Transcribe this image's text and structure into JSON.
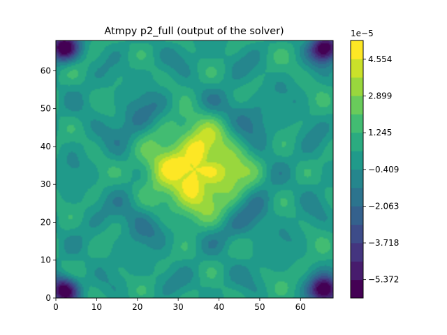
{
  "chart_data": {
    "type": "heatmap",
    "title": "Atmpy p2_full (output of the solver)",
    "xlabel": "",
    "ylabel": "",
    "xlim": [
      0,
      68
    ],
    "ylim": [
      0,
      68
    ],
    "x_ticks": [
      0,
      10,
      20,
      30,
      40,
      50,
      60
    ],
    "y_ticks": [
      0,
      10,
      20,
      30,
      40,
      50,
      60
    ],
    "colormap": "viridis",
    "colorbar": {
      "offset_label": "1e−5",
      "range": [
        -6.2,
        5.4
      ],
      "levels": 14,
      "tick_values": [
        -5.372,
        -3.718,
        -2.063,
        -0.409,
        1.245,
        2.899,
        4.554
      ],
      "tick_labels": [
        "−5.372",
        "−3.718",
        "−2.063",
        "−0.409",
        "1.245",
        "2.899",
        "4.554"
      ]
    },
    "features": [
      {
        "x": 34,
        "y": 34,
        "value": 4.5,
        "shape": "central high-pressure blob"
      },
      {
        "x": 2,
        "y": 66,
        "value": -6.0,
        "shape": "corner low"
      },
      {
        "x": 66,
        "y": 66,
        "value": -6.0,
        "shape": "corner low"
      },
      {
        "x": 2,
        "y": 2,
        "value": -6.0,
        "shape": "corner low"
      },
      {
        "x": 66,
        "y": 2,
        "value": -6.0,
        "shape": "corner low"
      },
      {
        "x": 22,
        "y": 47,
        "value": -2.5,
        "shape": "ring trough"
      },
      {
        "x": 47,
        "y": 46,
        "value": -2.5,
        "shape": "ring trough"
      },
      {
        "x": 21,
        "y": 21,
        "value": -2.5,
        "shape": "ring trough"
      },
      {
        "x": 48,
        "y": 20,
        "value": -2.5,
        "shape": "ring trough"
      }
    ]
  }
}
